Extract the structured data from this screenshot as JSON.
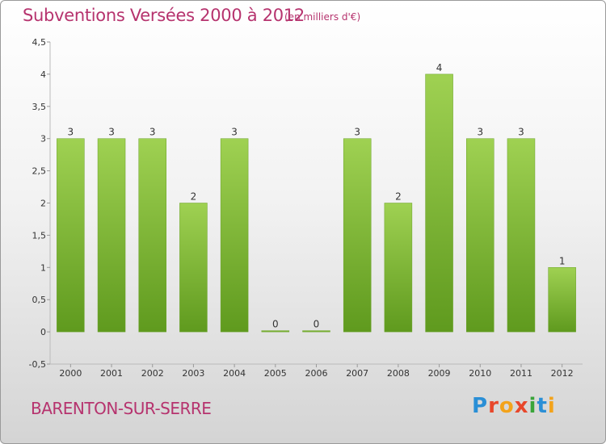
{
  "header": {
    "title": "Subventions Versées 2000 à 2012",
    "subtitle": "(en milliers d'€)"
  },
  "footer": {
    "town": "BARENTON-SUR-SERRE",
    "logo_letters": [
      {
        "char": "P",
        "color": "#2a8fd6"
      },
      {
        "char": "r",
        "color": "#e8472b"
      },
      {
        "char": "o",
        "color": "#f3a31b"
      },
      {
        "char": "x",
        "color": "#e8472b"
      },
      {
        "char": "i",
        "color": "#3aa53a"
      },
      {
        "char": "t",
        "color": "#2a8fd6"
      },
      {
        "char": "i",
        "color": "#f3a31b"
      }
    ]
  },
  "chart_data": {
    "type": "bar",
    "categories": [
      "2000",
      "2001",
      "2002",
      "2003",
      "2004",
      "2005",
      "2006",
      "2007",
      "2008",
      "2009",
      "2010",
      "2011",
      "2012"
    ],
    "values": [
      3,
      3,
      3,
      2,
      3,
      0,
      0,
      3,
      2,
      4,
      3,
      3,
      1
    ],
    "ylim": [
      -0.5,
      4.5
    ],
    "yticks": [
      "-0,5",
      "0",
      "0,5",
      "1",
      "1,5",
      "2",
      "2,5",
      "3",
      "3,5",
      "4",
      "4,5"
    ],
    "bar_color": "#7ab532",
    "grid": false
  }
}
